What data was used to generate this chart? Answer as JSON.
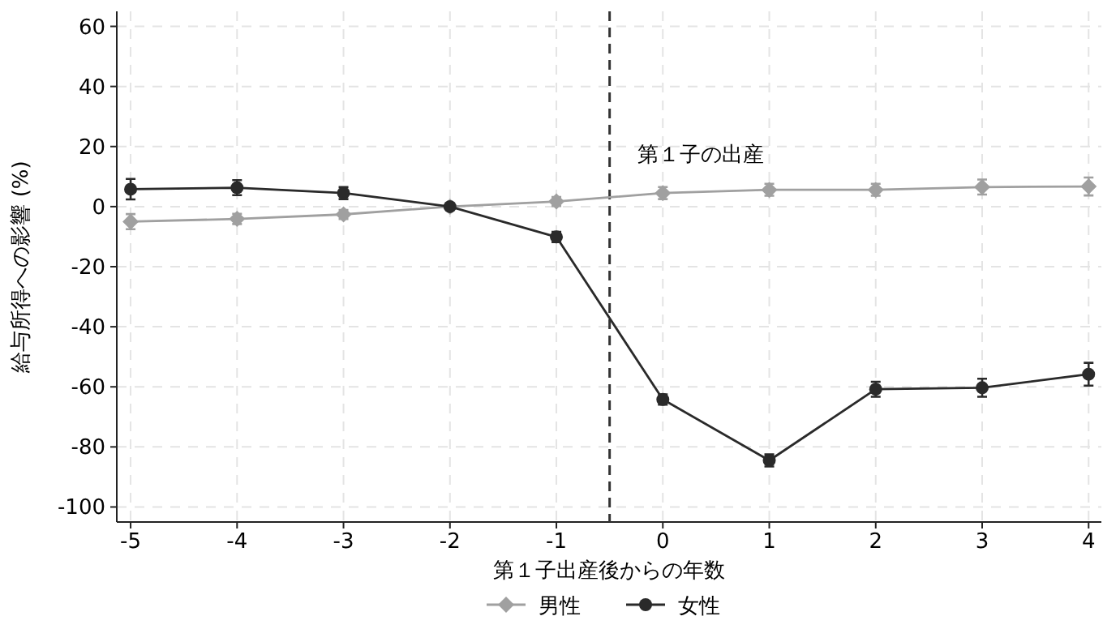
{
  "chart_data": {
    "type": "line",
    "xlabel": "第１子出産後からの年数",
    "ylabel": "給与所得への影響 (%)",
    "x": [
      -5,
      -4,
      -3,
      -2,
      -1,
      0,
      1,
      2,
      3,
      4
    ],
    "series": [
      {
        "name": "男性",
        "color": "#a0a0a0",
        "marker": "diamond",
        "values": [
          -5.0,
          -4.1,
          -2.6,
          0,
          1.7,
          4.5,
          5.6,
          5.6,
          6.5,
          6.7
        ],
        "errors": [
          2.5,
          1.7,
          1.5,
          null,
          1.5,
          2,
          2,
          2,
          2.5,
          3
        ]
      },
      {
        "name": "女性",
        "color": "#2a2a2a",
        "marker": "circle",
        "values": [
          5.8,
          6.3,
          4.5,
          0,
          -10.1,
          -64.2,
          -84.5,
          -60.8,
          -60.3,
          -55.8
        ],
        "errors": [
          3.4,
          2.5,
          2,
          null,
          1.7,
          1.7,
          2,
          2.5,
          3,
          3.8
        ]
      }
    ],
    "xlim": [
      -5.13,
      4.12
    ],
    "ylim": [
      -105,
      65
    ],
    "xticks": [
      -5,
      -4,
      -3,
      -2,
      -1,
      0,
      1,
      2,
      3,
      4
    ],
    "yticks": [
      -100,
      -80,
      -60,
      -40,
      -20,
      0,
      20,
      40,
      60
    ],
    "grid": true,
    "legend": "bottom",
    "line_style": "solid",
    "ref_lines": [
      {
        "axis": "x",
        "value": -0.5,
        "label": "第１子の出産",
        "line_style": "dashed",
        "color": "#333333"
      }
    ]
  }
}
